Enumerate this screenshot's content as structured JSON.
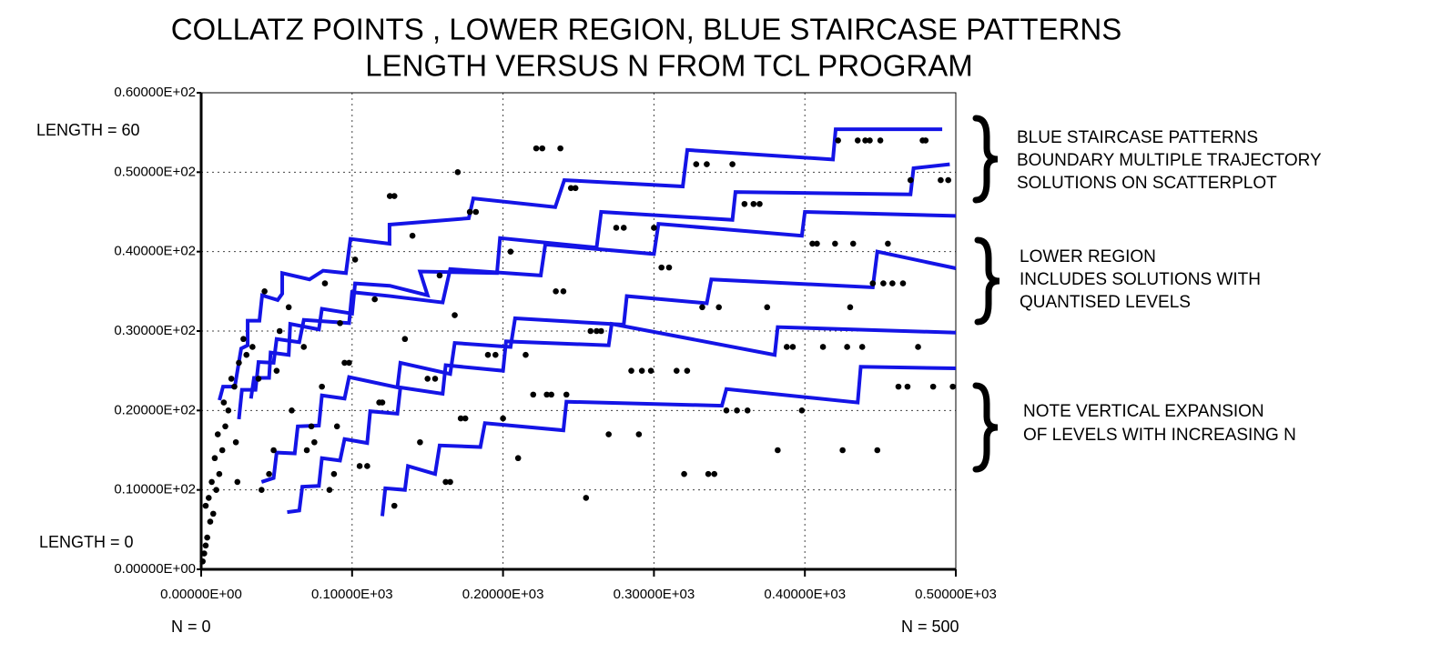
{
  "chart_data": {
    "type": "scatter",
    "title": [
      "COLLATZ  POINTS ,  LOWER  REGION, BLUE  STAIRCASE  PATTERNS",
      "LENGTH  VERSUS   N  FROM  TCL  PROGRAM"
    ],
    "xlim": [
      0,
      500
    ],
    "ylim": [
      0,
      60
    ],
    "xticks": [
      {
        "value": 0,
        "label": "0.00000E+00"
      },
      {
        "value": 100,
        "label": "0.10000E+03"
      },
      {
        "value": 200,
        "label": "0.20000E+03"
      },
      {
        "value": 300,
        "label": "0.30000E+03"
      },
      {
        "value": 400,
        "label": "0.40000E+03"
      },
      {
        "value": 500,
        "label": "0.50000E+03"
      }
    ],
    "yticks": [
      {
        "value": 0,
        "label": "0.00000E+00"
      },
      {
        "value": 10,
        "label": "0.10000E+02"
      },
      {
        "value": 20,
        "label": "0.20000E+02"
      },
      {
        "value": 30,
        "label": "0.30000E+02"
      },
      {
        "value": 40,
        "label": "0.40000E+02"
      },
      {
        "value": 50,
        "label": "0.50000E+02"
      },
      {
        "value": 60,
        "label": "0.60000E+02"
      }
    ],
    "grid": true,
    "point_color": "#000000",
    "x": [
      1,
      2,
      3,
      4,
      6,
      8,
      3,
      5,
      10,
      7,
      12,
      9,
      14,
      11,
      16,
      18,
      15,
      22,
      20,
      25,
      30,
      34,
      28,
      23,
      24,
      40,
      45,
      48,
      38,
      50,
      52,
      42,
      60,
      58,
      68,
      70,
      75,
      73,
      80,
      82,
      85,
      88,
      92,
      90,
      95,
      98,
      102,
      105,
      110,
      115,
      118,
      120,
      125,
      128,
      128,
      135,
      140,
      145,
      150,
      155,
      158,
      162,
      165,
      168,
      172,
      175,
      178,
      182,
      170,
      190,
      195,
      200,
      205,
      210,
      215,
      220,
      222,
      226,
      229,
      232,
      235,
      238,
      240,
      245,
      248,
      242,
      255,
      258,
      262,
      265,
      270,
      275,
      280,
      285,
      290,
      292,
      298,
      300,
      305,
      310,
      315,
      320,
      322,
      328,
      332,
      335,
      336,
      340,
      343,
      348,
      352,
      355,
      360,
      362,
      366,
      370,
      375,
      382,
      388,
      392,
      398,
      405,
      408,
      412,
      420,
      422,
      425,
      428,
      430,
      432,
      435,
      438,
      440,
      443,
      445,
      448,
      450,
      452,
      455,
      458,
      462,
      465,
      468,
      470,
      475,
      478,
      480,
      485,
      490,
      495,
      498
    ],
    "y": [
      1,
      2,
      3,
      4,
      6,
      7,
      8,
      9,
      10,
      11,
      12,
      14,
      15,
      17,
      18,
      20,
      21,
      23,
      24,
      26,
      27,
      28,
      29,
      16,
      11,
      10,
      12,
      15,
      24,
      25,
      30,
      35,
      20,
      33,
      28,
      15,
      16,
      18,
      23,
      36,
      10,
      12,
      31,
      18,
      26,
      26,
      39,
      13,
      13,
      34,
      21,
      21,
      47,
      47,
      8,
      29,
      42,
      16,
      24,
      24,
      37,
      11,
      11,
      32,
      19,
      19,
      45,
      45,
      50,
      27,
      27,
      19,
      40,
      14,
      27,
      22,
      53,
      53,
      22,
      22,
      35,
      53,
      35,
      48,
      48,
      22,
      9,
      30,
      30,
      30,
      17,
      43,
      43,
      25,
      17,
      25,
      25,
      43,
      38,
      38,
      25,
      12,
      25,
      51,
      33,
      51,
      12,
      12,
      33,
      20,
      51,
      20,
      46,
      20,
      46,
      46,
      33,
      15,
      28,
      28,
      20,
      41,
      41,
      28,
      41,
      54,
      15,
      28,
      33,
      41,
      54,
      28,
      54,
      54,
      36,
      15,
      54,
      36,
      41,
      36,
      23,
      36,
      23,
      49,
      28,
      54,
      54,
      23,
      49,
      49,
      23
    ],
    "staircases": [
      {
        "color": "#1414e6",
        "x": [
          12.1,
          14.5,
          22.3,
          26.5,
          30.8,
          30.8,
          38.6,
          40.4,
          50.7,
          53.7,
          53.7,
          71.8,
          80.8,
          95.9,
          98.9,
          124.8,
          124.8,
          177.3,
          180.3,
          234.6,
          240.6,
          319.1,
          322.1,
          418.6,
          420.4,
          491
        ],
        "y": [
          21.3,
          23,
          23,
          27.8,
          28.2,
          31.3,
          31.3,
          34.5,
          33.9,
          34.7,
          37.3,
          36.5,
          37.6,
          37.3,
          41.6,
          41,
          43.4,
          44.2,
          46.7,
          45.6,
          49,
          48.2,
          52.8,
          51.6,
          55.4,
          55.4
        ]
      },
      {
        "color": "#1414e6",
        "x": [
          33,
          35,
          45,
          46,
          58,
          59,
          78,
          80,
          100,
          102,
          125,
          150,
          145,
          196,
          198,
          262,
          265,
          352,
          354,
          470,
          472,
          496
        ],
        "y": [
          21.5,
          24.1,
          24.1,
          27.3,
          27,
          30.9,
          30.2,
          32.8,
          32.2,
          36,
          35.7,
          34.5,
          37.5,
          37.3,
          41.7,
          40.5,
          45,
          44,
          47.5,
          47.2,
          50.5,
          51
        ]
      },
      {
        "color": "#1414e6",
        "x": [
          25,
          27,
          36,
          38,
          48,
          50,
          65,
          68,
          98,
          100,
          125,
          160,
          165,
          225,
          228,
          300,
          303,
          398,
          400,
          500
        ],
        "y": [
          18.9,
          22.6,
          22.6,
          26.1,
          26,
          29,
          28.6,
          31.4,
          31,
          34.9,
          34.4,
          33.6,
          37.8,
          37,
          40.9,
          39.7,
          43.5,
          42,
          45,
          44.5
        ]
      },
      {
        "color": "#1414e6",
        "x": [
          40,
          48,
          50,
          62,
          64,
          78,
          80,
          95,
          98,
          130,
          132,
          165,
          168,
          205,
          208,
          280,
          282,
          335,
          338,
          445,
          448,
          500
        ],
        "y": [
          11,
          11.5,
          14.7,
          14.6,
          18,
          18.1,
          21.9,
          21.5,
          24.2,
          22.9,
          26,
          24.6,
          28.5,
          28,
          31.6,
          30.8,
          34.4,
          33.5,
          36.5,
          35.5,
          40,
          37.9
        ]
      },
      {
        "color": "#1414e6",
        "x": [
          57,
          65,
          67,
          78,
          80,
          92,
          95,
          110,
          112,
          130,
          132,
          160,
          162,
          200,
          202,
          270,
          272,
          380,
          382,
          500
        ],
        "y": [
          7.2,
          7.4,
          10.4,
          10.5,
          14,
          13.7,
          16.4,
          15.9,
          19.9,
          19.6,
          22.9,
          22.1,
          25.7,
          25,
          28.7,
          28.2,
          30.9,
          27,
          30.5,
          29.8
        ]
      },
      {
        "color": "#1414e6",
        "x": [
          120,
          122,
          135,
          137,
          155,
          158,
          185,
          188,
          240,
          242,
          345,
          348,
          435,
          437,
          500
        ],
        "y": [
          6.7,
          10.2,
          10,
          13,
          12,
          15.6,
          15.4,
          18.4,
          17.5,
          21.1,
          20.6,
          22.7,
          21,
          25.5,
          25.3
        ]
      }
    ],
    "annotations": {
      "length_top": "LENGTH =  60",
      "length_bottom": "LENGTH  =  0",
      "n_start": "N =  0",
      "n_end": "N =  500"
    },
    "notes": [
      [
        "BLUE  STAIRCASE  PATTERNS",
        "BOUNDARY  MULTIPLE  TRAJECTORY",
        "SOLUTIONS  ON SCATTERPLOT"
      ],
      [
        "LOWER  REGION",
        "INCLUDES  SOLUTIONS WITH",
        "QUANTISED  LEVELS"
      ],
      [
        "NOTE  VERTICAL  EXPANSION",
        "OF  LEVELS  WITH  INCREASING  N"
      ]
    ]
  }
}
